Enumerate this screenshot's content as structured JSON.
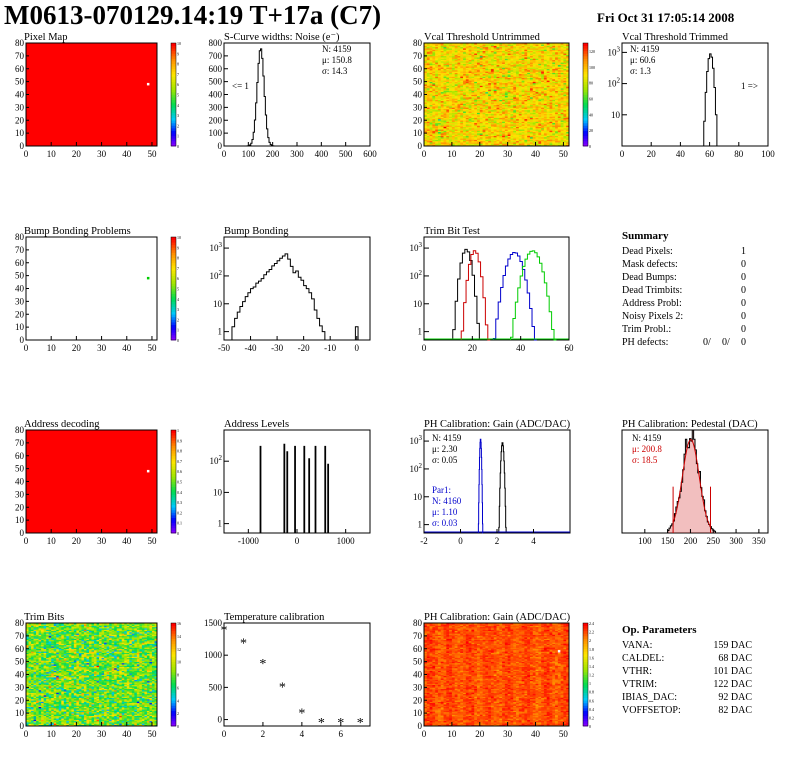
{
  "page": {
    "title": "M0613-070129.14:19 T+17a (C7)",
    "date": "Fri Oct 31 17:05:14 2008"
  },
  "panels": {
    "pixel_map": {
      "title": "Pixel Map"
    },
    "scurve": {
      "title": "S-Curve widths: Noise (e⁻)",
      "stats": [
        "N: 4159",
        "μ: 150.8",
        "σ: 14.3"
      ],
      "underflow": "<= 1"
    },
    "vcal_untrimmed": {
      "title": "Vcal Threshold Untrimmed"
    },
    "vcal_trimmed": {
      "title": "Vcal Threshold Trimmed",
      "stats": [
        "N: 4159",
        "μ: 60.6",
        "σ:  1.3"
      ],
      "overflow": "1 =>"
    },
    "bump_problems": {
      "title": "Bump Bonding Problems"
    },
    "bump_bonding": {
      "title": "Bump Bonding"
    },
    "trim_bit_test": {
      "title": "Trim Bit Test"
    },
    "address_decoding": {
      "title": "Address decoding"
    },
    "address_levels": {
      "title": "Address Levels"
    },
    "ph_gain": {
      "title": "PH Calibration: Gain (ADC/DAC)",
      "stats": [
        "N: 4159",
        "μ: 2.30",
        "σ: 0.05"
      ],
      "stats2": [
        "Par1:",
        "N: 4160",
        "μ: 1.10",
        "σ: 0.03"
      ]
    },
    "ph_pedestal": {
      "title": "PH Calibration: Pedestal (DAC)",
      "stats": [
        "N: 4159",
        "μ: 200.8",
        "σ: 18.5"
      ]
    },
    "trim_bits": {
      "title": "Trim Bits"
    },
    "temperature": {
      "title": "Temperature calibration"
    },
    "ph_gain_map": {
      "title": "PH Calibration: Gain (ADC/DAC)"
    }
  },
  "summary": {
    "heading": "Summary",
    "rows": [
      {
        "label": "Dead Pixels:",
        "value": "1"
      },
      {
        "label": "Mask defects:",
        "value": "0"
      },
      {
        "label": "Dead Bumps:",
        "value": "0"
      },
      {
        "label": "Dead Trimbits:",
        "value": "0"
      },
      {
        "label": "Address Probl:",
        "value": "0"
      },
      {
        "label": "Noisy Pixels 2:",
        "value": "0"
      },
      {
        "label": "Trim Probl.:",
        "value": "0"
      }
    ],
    "ph_label": "PH defects:",
    "ph_values": [
      "0/",
      "0/",
      "0"
    ],
    "ph_colors": [
      "#000000",
      "#d40000",
      "#0000d0"
    ]
  },
  "op_params": {
    "heading": "Op. Parameters",
    "rows": [
      {
        "label": "VANA:",
        "value": "159 DAC"
      },
      {
        "label": "CALDEL:",
        "value": "68 DAC"
      },
      {
        "label": "VTHR:",
        "value": "101 DAC"
      },
      {
        "label": "VTRIM:",
        "value": "122 DAC"
      },
      {
        "label": "IBIAS_DAC:",
        "value": "92 DAC"
      },
      {
        "label": "VOFFSETOP:",
        "value": "82 DAC"
      }
    ]
  },
  "colors": {
    "map_red": "#ff0000",
    "green": "#00cc00",
    "blue": "#0000cc",
    "red": "#cc0000"
  },
  "chart_data": [
    {
      "id": "pixel_map",
      "type": "heatmap",
      "xlim": [
        0,
        52
      ],
      "ylim": [
        0,
        80
      ],
      "xticks": [
        0,
        10,
        20,
        30,
        40,
        50
      ],
      "yticks": [
        0,
        10,
        20,
        30,
        40,
        50,
        60,
        70,
        80
      ],
      "zticks": [
        0,
        1,
        2,
        3,
        4,
        5,
        6,
        7,
        8,
        9,
        10
      ],
      "z_all": 10,
      "special": [
        {
          "x": 48,
          "y": 48,
          "z": 0
        }
      ]
    },
    {
      "id": "scurve",
      "type": "histogram",
      "xlim": [
        0,
        600
      ],
      "xticks": [
        0,
        100,
        200,
        300,
        400,
        500,
        600
      ],
      "log": false,
      "ylim": [
        0,
        800
      ],
      "mean": 150.8,
      "sigma": 14.3,
      "peak": 760
    },
    {
      "id": "vcal_untrimmed",
      "type": "heatmap",
      "xlim": [
        0,
        52
      ],
      "ylim": [
        0,
        80
      ],
      "xticks": [
        0,
        10,
        20,
        30,
        40,
        50
      ],
      "yticks": [
        0,
        10,
        20,
        30,
        40,
        50,
        60,
        70,
        80
      ],
      "zticks": [
        0,
        20,
        40,
        60,
        80,
        100,
        120
      ],
      "zrange": [
        0,
        130
      ],
      "zmean": 92,
      "zspread": 12
    },
    {
      "id": "vcal_trimmed",
      "type": "histogram",
      "xlim": [
        0,
        100
      ],
      "xticks": [
        0,
        20,
        40,
        60,
        80,
        100
      ],
      "log": true,
      "ylim": [
        1,
        2000
      ],
      "yticks": [
        10,
        100,
        1000
      ],
      "mean": 60.6,
      "sigma": 1.3,
      "peak": 900
    },
    {
      "id": "bump_problems",
      "type": "heatmap",
      "xlim": [
        0,
        52
      ],
      "ylim": [
        0,
        80
      ],
      "xticks": [
        0,
        10,
        20,
        30,
        40,
        50
      ],
      "yticks": [
        0,
        10,
        20,
        30,
        40,
        50,
        60,
        70,
        80
      ],
      "zticks": [
        0,
        1,
        2,
        3,
        4,
        5,
        6,
        7,
        8,
        9,
        10
      ],
      "z_all": null,
      "special": [
        {
          "x": 48,
          "y": 48,
          "z": 4
        }
      ]
    },
    {
      "id": "bump_bonding",
      "type": "histogram",
      "xlim": [
        -50,
        5
      ],
      "xticks": [
        -50,
        -40,
        -30,
        -20,
        -10,
        0
      ],
      "log": true,
      "ylim": [
        0.5,
        2500
      ],
      "yticks": [
        1,
        10,
        100,
        1000
      ],
      "points": [
        [
          -47,
          1.5
        ],
        [
          -46,
          3
        ],
        [
          -45,
          5
        ],
        [
          -44,
          8
        ],
        [
          -43,
          12
        ],
        [
          -42,
          18
        ],
        [
          -41,
          25
        ],
        [
          -40,
          35
        ],
        [
          -39,
          40
        ],
        [
          -38,
          55
        ],
        [
          -37,
          65
        ],
        [
          -36,
          80
        ],
        [
          -35,
          110
        ],
        [
          -34,
          140
        ],
        [
          -33,
          170
        ],
        [
          -32,
          230
        ],
        [
          -31,
          280
        ],
        [
          -30,
          350
        ],
        [
          -29,
          430
        ],
        [
          -28,
          520
        ],
        [
          -27,
          620
        ],
        [
          -26,
          400
        ],
        [
          -25,
          220
        ],
        [
          -24,
          130
        ],
        [
          -23,
          150
        ],
        [
          -22,
          90
        ],
        [
          -21,
          70
        ],
        [
          -20,
          45
        ],
        [
          -19,
          35
        ],
        [
          -18,
          25
        ],
        [
          -17,
          15
        ],
        [
          -16,
          6
        ],
        [
          -15,
          3
        ],
        [
          -14,
          1.6
        ],
        [
          -13,
          1
        ]
      ]
    },
    {
      "id": "trim_bit_test",
      "type": "histogram",
      "xlim": [
        0,
        60
      ],
      "xticks": [
        0,
        20,
        40,
        60
      ],
      "log": true,
      "ylim": [
        0.5,
        2500
      ],
      "yticks": [
        1,
        10,
        100,
        1000
      ],
      "series": [
        {
          "name": "",
          "color": "#000000",
          "mean": 17.5,
          "sigma": 1.4,
          "peak": 900
        },
        {
          "name": "",
          "color": "#cc0000",
          "mean": 21,
          "sigma": 1.4,
          "peak": 800
        },
        {
          "name": "",
          "color": "#0000cc",
          "mean": 37.5,
          "sigma": 2.2,
          "peak": 700
        },
        {
          "name": "",
          "color": "#00cc00",
          "mean": 45,
          "sigma": 2.3,
          "peak": 800
        }
      ]
    },
    {
      "id": "address_decoding",
      "type": "heatmap",
      "xlim": [
        0,
        52
      ],
      "ylim": [
        0,
        80
      ],
      "xticks": [
        0,
        10,
        20,
        30,
        40,
        50
      ],
      "yticks": [
        0,
        10,
        20,
        30,
        40,
        50,
        60,
        70,
        80
      ],
      "zticks": [
        0,
        0.1,
        0.2,
        0.3,
        0.4,
        0.5,
        0.6,
        0.7,
        0.8,
        0.9,
        1
      ],
      "z_all": 1,
      "special": [
        {
          "x": 48,
          "y": 48,
          "z": 0
        }
      ]
    },
    {
      "id": "address_levels",
      "type": "histogram",
      "xlim": [
        -1500,
        1500
      ],
      "xticks": [
        -1000,
        0,
        1000
      ],
      "log": true,
      "ylim": [
        0.5,
        1000
      ],
      "yticks": [
        1,
        10,
        100
      ],
      "peaks": [
        [
          -750,
          300
        ],
        [
          -260,
          350
        ],
        [
          -200,
          200
        ],
        [
          -40,
          300
        ],
        [
          150,
          300
        ],
        [
          250,
          120
        ],
        [
          380,
          300
        ],
        [
          580,
          300
        ],
        [
          640,
          80
        ]
      ]
    },
    {
      "id": "ph_gain",
      "type": "histogram",
      "xlim": [
        -2,
        6
      ],
      "xticks": [
        -2,
        0,
        2,
        4
      ],
      "log": true,
      "ylim": [
        0.5,
        2500
      ],
      "yticks": [
        1,
        10,
        100,
        1000
      ],
      "series": [
        {
          "name": "Par0",
          "color": "#000000",
          "mean": 2.3,
          "sigma": 0.05,
          "peak": 900
        },
        {
          "name": "Par1",
          "color": "#0000cc",
          "mean": 1.1,
          "sigma": 0.03,
          "peak": 1200
        }
      ]
    },
    {
      "id": "ph_pedestal",
      "type": "histogram",
      "xlim": [
        50,
        370
      ],
      "xticks": [
        100,
        150,
        200,
        250,
        300,
        350
      ],
      "log": false,
      "ylim": [
        0,
        110
      ],
      "mean": 200.8,
      "sigma": 18.5,
      "peak": 105,
      "fit_color": "#cc0000",
      "fit_range": [
        162,
        244
      ]
    },
    {
      "id": "trim_bits",
      "type": "heatmap",
      "xlim": [
        0,
        52
      ],
      "ylim": [
        0,
        80
      ],
      "xticks": [
        0,
        10,
        20,
        30,
        40,
        50
      ],
      "yticks": [
        0,
        10,
        20,
        30,
        40,
        50,
        60,
        70,
        80
      ],
      "zticks": [
        0,
        2,
        4,
        6,
        8,
        10,
        12,
        14,
        16
      ],
      "zrange": [
        0,
        16
      ],
      "zmean": 8,
      "zspread": 2
    },
    {
      "id": "temperature",
      "type": "scatter",
      "xlim": [
        0,
        7.5
      ],
      "ylim": [
        -100,
        1500
      ],
      "xticks": [
        0,
        2,
        4,
        6
      ],
      "yticks": [
        0,
        500,
        1000,
        1500
      ],
      "x": [
        0,
        1,
        2,
        3,
        4,
        5,
        6,
        7
      ],
      "y": [
        1400,
        1200,
        880,
        510,
        110,
        -40,
        -40,
        -40
      ]
    },
    {
      "id": "ph_gain_map",
      "type": "heatmap",
      "xlim": [
        0,
        52
      ],
      "ylim": [
        0,
        80
      ],
      "xticks": [
        0,
        10,
        20,
        30,
        40,
        50
      ],
      "yticks": [
        0,
        10,
        20,
        30,
        40,
        50,
        60,
        70,
        80
      ],
      "zticks": [
        0,
        0.2,
        0.4,
        0.6,
        0.8,
        1,
        1.2,
        1.4,
        1.6,
        1.8,
        2,
        2.2,
        2.4
      ],
      "zrange": [
        0,
        2.4
      ],
      "zmean": 2.2,
      "zspread": 0.08,
      "special": [
        {
          "x": 48,
          "y": 58,
          "z": 0
        }
      ]
    }
  ]
}
